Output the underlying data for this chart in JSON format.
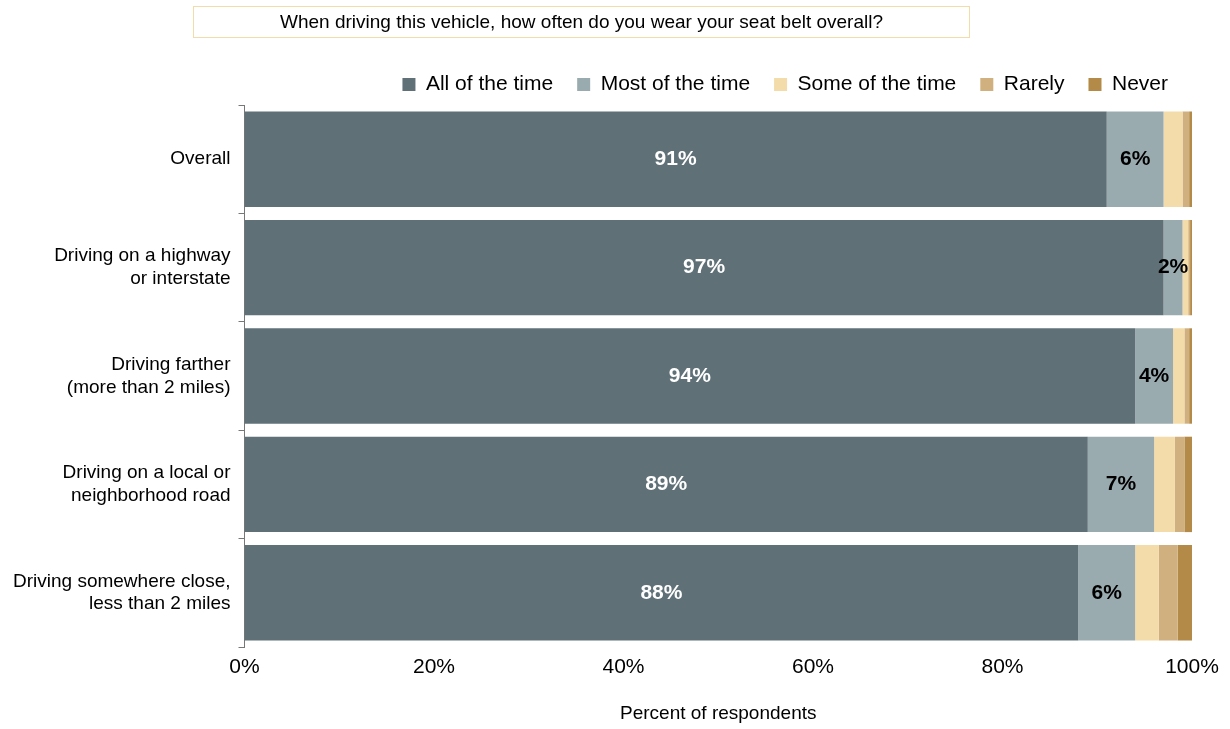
{
  "chart_data": {
    "type": "bar",
    "orientation": "horizontal",
    "stacked": true,
    "title": "When driving this vehicle, how often do you wear your seat belt overall?",
    "xlabel": "Percent of respondents",
    "categories": [
      "Overall",
      "Driving on a highway\nor interstate",
      "Driving farther\n(more than 2 miles)",
      "Driving on a local or\nneighborhood road",
      "Driving somewhere close,\nless than 2 miles"
    ],
    "series": [
      {
        "name": "All of the time",
        "color": "#5f7077",
        "values": [
          91,
          97,
          94,
          89,
          88
        ],
        "value_labels": [
          "91%",
          "97%",
          "94%",
          "89%",
          "88%"
        ]
      },
      {
        "name": "Most of the time",
        "color": "#9aabb0",
        "values": [
          6,
          2,
          4,
          7,
          6
        ],
        "value_labels": [
          "6%",
          "2%",
          "4%",
          "7%",
          "6%"
        ]
      },
      {
        "name": "Some of the time",
        "color": "#f3dcaa",
        "values": [
          2,
          0.6,
          1.2,
          2.2,
          2.5
        ]
      },
      {
        "name": "Rarely",
        "color": "#d1b07f",
        "values": [
          0.7,
          0.2,
          0.5,
          1,
          2
        ]
      },
      {
        "name": "Never",
        "color": "#b38a47",
        "values": [
          0.3,
          0.2,
          0.3,
          0.8,
          1.5
        ]
      }
    ],
    "xlim": [
      0,
      100
    ],
    "xticks": [
      {
        "value": 0,
        "label": "0%"
      },
      {
        "value": 20,
        "label": "20%"
      },
      {
        "value": 40,
        "label": "40%"
      },
      {
        "value": 60,
        "label": "60%"
      },
      {
        "value": 80,
        "label": "80%"
      },
      {
        "value": 100,
        "label": "100%"
      }
    ],
    "grid": false,
    "legend": "top"
  }
}
